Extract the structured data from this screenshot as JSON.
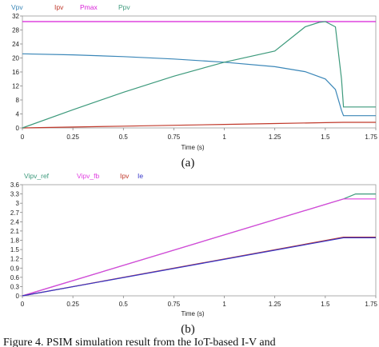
{
  "figure_caption": "Figure 4. PSIM simulation result from the IoT-based I-V and",
  "chart_data": [
    {
      "type": "line",
      "panel_label": "(a)",
      "xlabel": "Time (s)",
      "ylabel": "",
      "xlim": [
        0,
        1.75
      ],
      "ylim": [
        0,
        32
      ],
      "x_ticks": [
        "0",
        "0.25",
        "0.5",
        "0.75",
        "1",
        "1.25",
        "1.5",
        "1.75"
      ],
      "y_ticks": [
        "0",
        "4",
        "8",
        "12",
        "16",
        "20",
        "24",
        "28",
        "32"
      ],
      "grid": false,
      "legend_position": "top-left",
      "series": [
        {
          "name": "Vpv",
          "color": "#3b87b8",
          "x": [
            0,
            0.25,
            0.5,
            0.75,
            1.0,
            1.25,
            1.4,
            1.5,
            1.55,
            1.58,
            1.59,
            1.75
          ],
          "y": [
            21.2,
            20.9,
            20.4,
            19.7,
            18.8,
            17.5,
            16.1,
            14.0,
            11.0,
            5.0,
            3.5,
            3.5
          ]
        },
        {
          "name": "Ipv",
          "color": "#c0392b",
          "x": [
            0,
            0.25,
            0.5,
            0.75,
            1.0,
            1.25,
            1.5,
            1.59,
            1.75
          ],
          "y": [
            0,
            0.25,
            0.5,
            0.75,
            1.0,
            1.25,
            1.5,
            1.6,
            1.6
          ]
        },
        {
          "name": "Pmax",
          "color": "#d81fd8",
          "x": [
            0,
            1.75
          ],
          "y": [
            30.4,
            30.4
          ]
        },
        {
          "name": "Ppv",
          "color": "#3d9a7c",
          "x": [
            0,
            0.25,
            0.5,
            0.75,
            1.0,
            1.25,
            1.4,
            1.47,
            1.5,
            1.55,
            1.58,
            1.59,
            1.75
          ],
          "y": [
            0,
            5.2,
            10.2,
            14.8,
            18.8,
            22.0,
            28.9,
            30.2,
            30.4,
            28.9,
            14.0,
            6.0,
            6.0
          ]
        }
      ]
    },
    {
      "type": "line",
      "panel_label": "(b)",
      "xlabel": "Time (s)",
      "ylabel": "",
      "xlim": [
        0,
        1.75
      ],
      "ylim": [
        0,
        3.6
      ],
      "x_ticks": [
        "0",
        "0.25",
        "0.5",
        "0.75",
        "1",
        "1.25",
        "1.5",
        "1.75"
      ],
      "y_ticks": [
        "0",
        "0.3",
        "0.6",
        "0.9",
        "1.2",
        "1.5",
        "1.8",
        "2.1",
        "2.4",
        "2.7",
        "3",
        "3.3",
        "3.6"
      ],
      "grid": false,
      "legend_position": "top",
      "series": [
        {
          "name": "Vipv_ref",
          "color": "#3d9a7c",
          "x": [
            0,
            1.59,
            1.65,
            1.75
          ],
          "y": [
            0,
            3.14,
            3.3,
            3.3
          ]
        },
        {
          "name": "Vipv_fb",
          "color": "#e040e0",
          "x": [
            0,
            1.59,
            1.75
          ],
          "y": [
            0,
            3.14,
            3.14
          ]
        },
        {
          "name": "Ipv",
          "color": "#c0392b",
          "x": [
            0,
            1.59,
            1.75
          ],
          "y": [
            0,
            1.9,
            1.9
          ]
        },
        {
          "name": "Ie",
          "color": "#3535c8",
          "x": [
            0,
            1.59,
            1.75
          ],
          "y": [
            0,
            1.88,
            1.88
          ]
        }
      ]
    }
  ]
}
